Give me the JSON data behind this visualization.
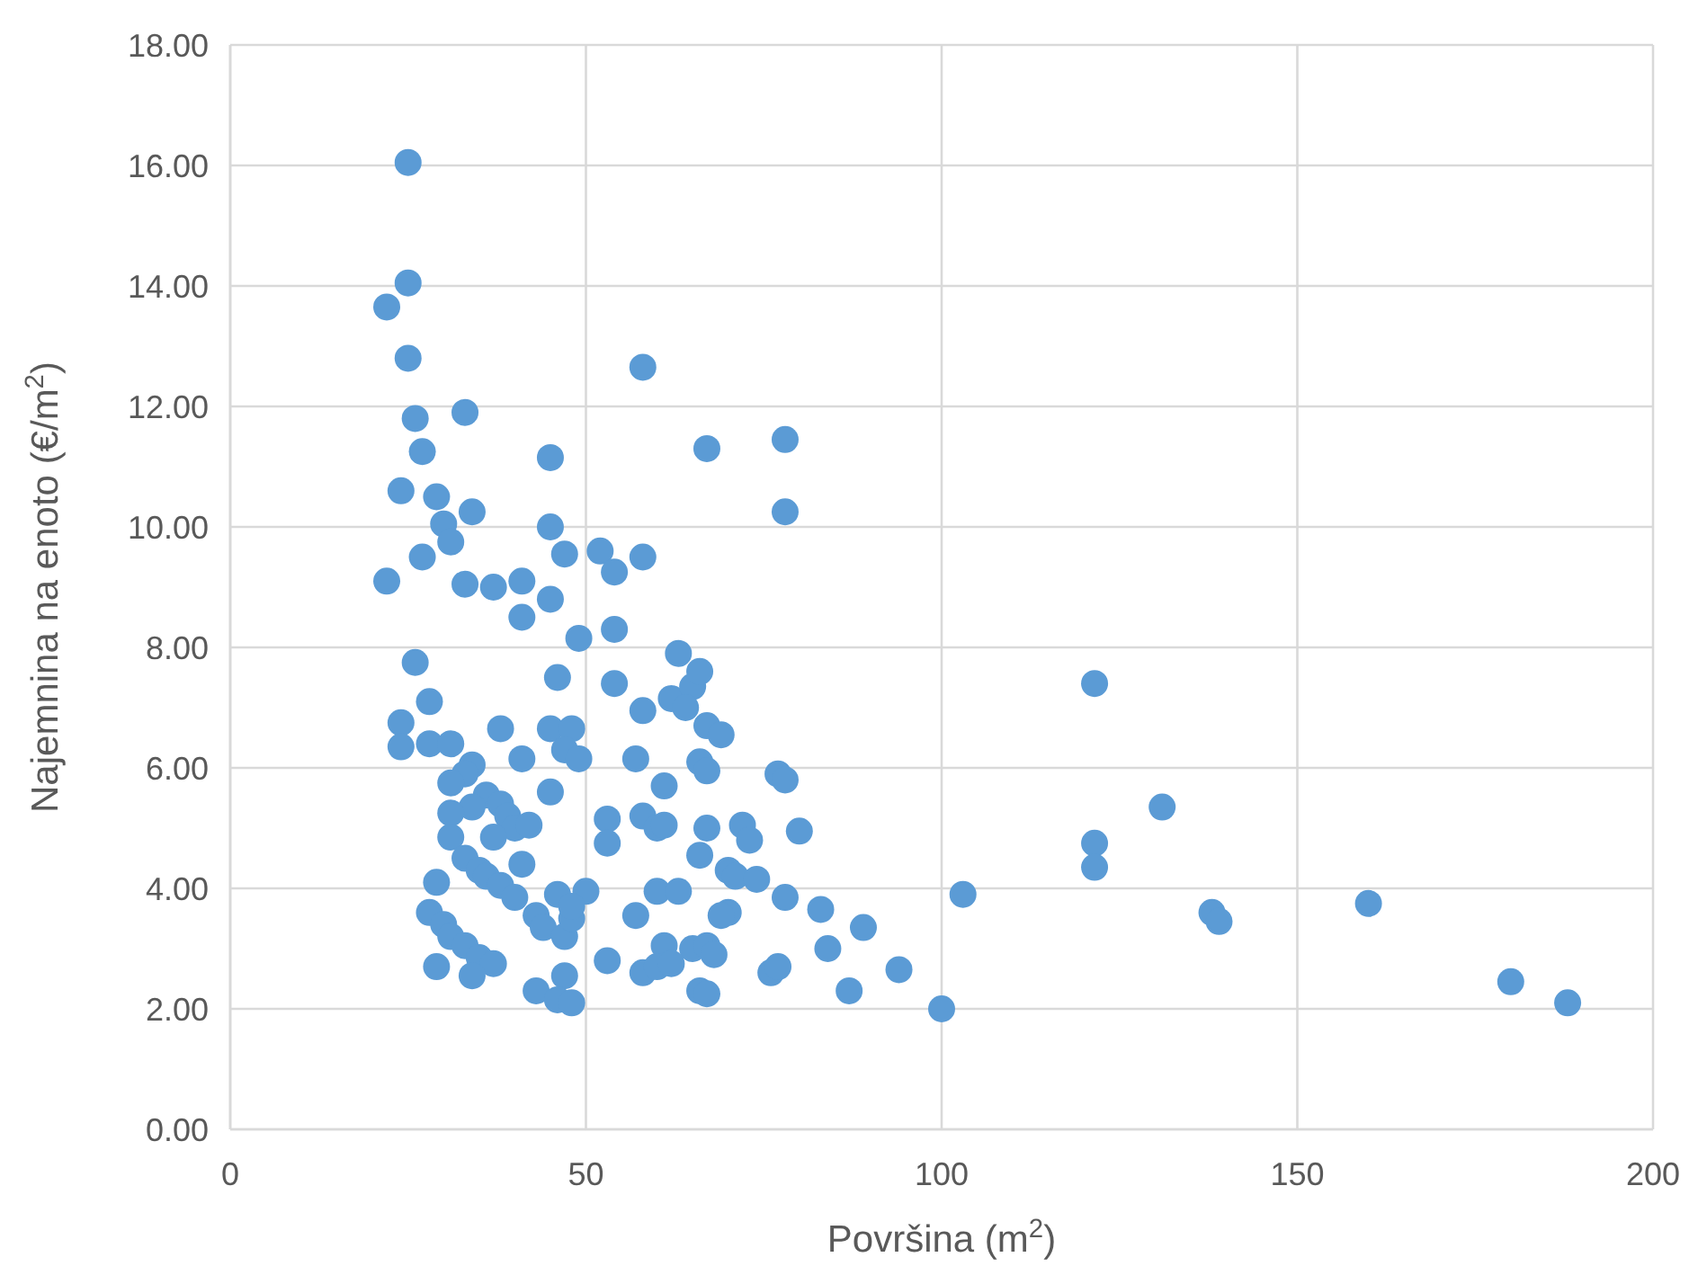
{
  "chart_data": {
    "type": "scatter",
    "xlabel": "Površina (m$^{2}$)",
    "ylabel": "Najemnina na enoto (€/m$^{2}$)",
    "xlim": [
      0,
      200
    ],
    "xticks": [
      0,
      50,
      100,
      150,
      200
    ],
    "ylim": [
      0,
      18
    ],
    "yticks": [
      {
        "value": 0,
        "label": "0.00"
      },
      {
        "value": 2,
        "label": "2.00"
      },
      {
        "value": 4,
        "label": "4.00"
      },
      {
        "value": 6,
        "label": "6.00"
      },
      {
        "value": 8,
        "label": "8.00"
      },
      {
        "value": 10,
        "label": "10.00"
      },
      {
        "value": 12,
        "label": "12.00"
      },
      {
        "value": 14,
        "label": "14.00"
      },
      {
        "value": 16,
        "label": "16.00"
      },
      {
        "value": 18,
        "label": "18.00"
      }
    ],
    "grid": true,
    "marker": "circle",
    "series": [
      {
        "color": "#5b9bd5",
        "x": [
          25,
          25,
          22,
          25,
          58,
          26,
          33,
          45,
          67,
          78,
          27,
          24,
          29,
          34,
          30,
          31,
          45,
          78,
          27,
          22,
          33,
          37,
          41,
          41,
          45,
          47,
          52,
          54,
          58,
          49,
          54,
          63,
          26,
          46,
          54,
          62,
          65,
          66,
          58,
          64,
          67,
          69,
          28,
          24,
          24,
          28,
          31,
          38,
          45,
          48,
          47,
          49,
          41,
          34,
          33,
          57,
          66,
          67,
          77,
          78,
          31,
          36,
          45,
          61,
          38,
          34,
          31,
          39,
          40,
          42,
          37,
          31,
          53,
          58,
          60,
          61,
          67,
          72,
          73,
          80,
          53,
          66,
          121.5,
          121.5,
          121.5,
          131,
          33,
          35,
          36,
          38,
          41,
          29,
          40,
          46,
          50,
          57,
          60,
          63,
          70,
          71,
          74,
          78,
          83,
          103,
          28,
          30,
          31,
          33,
          35,
          37,
          43,
          44,
          47,
          48,
          48,
          53,
          61,
          65,
          67,
          68,
          70,
          69,
          76,
          77,
          84,
          89,
          94,
          138,
          139,
          160,
          180,
          188,
          100,
          87,
          29,
          34,
          43,
          47,
          46,
          48,
          58,
          60,
          66,
          67,
          62
        ],
        "values": [
          16.05,
          14.05,
          13.65,
          12.8,
          12.65,
          11.8,
          11.9,
          11.15,
          11.3,
          11.45,
          11.25,
          10.6,
          10.5,
          10.25,
          10.05,
          9.75,
          10.0,
          10.25,
          9.5,
          9.1,
          9.05,
          9.0,
          9.1,
          8.5,
          8.8,
          9.55,
          9.6,
          9.25,
          9.5,
          8.15,
          8.3,
          7.9,
          7.75,
          7.5,
          7.4,
          7.15,
          7.35,
          7.6,
          6.95,
          7.0,
          6.7,
          6.55,
          7.1,
          6.75,
          6.35,
          6.4,
          6.4,
          6.65,
          6.65,
          6.65,
          6.3,
          6.15,
          6.15,
          6.05,
          5.9,
          6.15,
          6.1,
          5.95,
          5.9,
          5.8,
          5.75,
          5.55,
          5.6,
          5.7,
          5.4,
          5.35,
          5.25,
          5.2,
          5.0,
          5.05,
          4.85,
          4.85,
          5.15,
          5.2,
          5.0,
          5.05,
          5.0,
          5.05,
          4.8,
          4.95,
          4.75,
          4.55,
          4.75,
          4.35,
          7.4,
          5.35,
          4.5,
          4.3,
          4.2,
          4.05,
          4.4,
          4.1,
          3.85,
          3.9,
          3.95,
          3.55,
          3.95,
          3.95,
          4.3,
          4.2,
          4.15,
          3.85,
          3.65,
          3.9,
          3.6,
          3.4,
          3.2,
          3.05,
          2.85,
          2.75,
          3.55,
          3.35,
          3.2,
          3.5,
          3.7,
          2.8,
          3.05,
          3.0,
          3.05,
          2.9,
          3.6,
          3.55,
          2.6,
          2.7,
          3.0,
          3.35,
          2.65,
          3.6,
          3.45,
          3.75,
          2.45,
          2.1,
          2.0,
          2.3,
          2.7,
          2.55,
          2.3,
          2.55,
          2.15,
          2.1,
          2.6,
          2.7,
          2.3,
          2.25,
          2.75
        ]
      }
    ]
  }
}
